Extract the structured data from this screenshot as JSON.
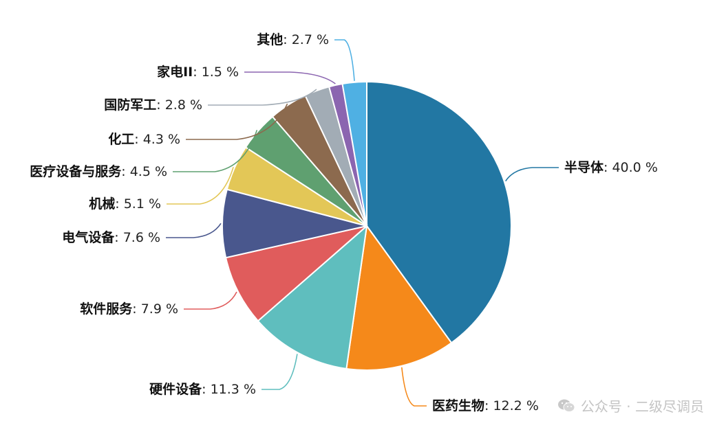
{
  "chart_data": {
    "type": "pie",
    "unit": "%",
    "slices": [
      {
        "label": "半导体",
        "value": 40.0,
        "value_text": "40.0 %",
        "color": "#2277a3"
      },
      {
        "label": "医药生物",
        "value": 12.2,
        "value_text": "12.2 %",
        "color": "#f5891a"
      },
      {
        "label": "硬件设备",
        "value": 11.3,
        "value_text": "11.3 %",
        "color": "#5fbebe"
      },
      {
        "label": "软件服务",
        "value": 7.9,
        "value_text": "7.9 %",
        "color": "#e05c5c"
      },
      {
        "label": "电气设备",
        "value": 7.6,
        "value_text": "7.6 %",
        "color": "#49578d"
      },
      {
        "label": "机械",
        "value": 5.1,
        "value_text": "5.1 %",
        "color": "#e3c757"
      },
      {
        "label": "医疗设备与服务",
        "value": 4.5,
        "value_text": "4.5 %",
        "color": "#5fa070"
      },
      {
        "label": "化工",
        "value": 4.3,
        "value_text": "4.3 %",
        "color": "#8c6a4e"
      },
      {
        "label": "国防军工",
        "value": 2.8,
        "value_text": "2.8 %",
        "color": "#a2acb5"
      },
      {
        "label": "家电II",
        "value": 1.5,
        "value_text": "1.5 %",
        "color": "#8b65b0"
      },
      {
        "label": "其他",
        "value": 2.7,
        "value_text": "2.7 %",
        "color": "#4fb0e3"
      }
    ],
    "direction": "clockwise",
    "start": "top"
  },
  "watermark": {
    "text": "公众号 · 二级尽调员",
    "icon": "wechat-icon"
  }
}
